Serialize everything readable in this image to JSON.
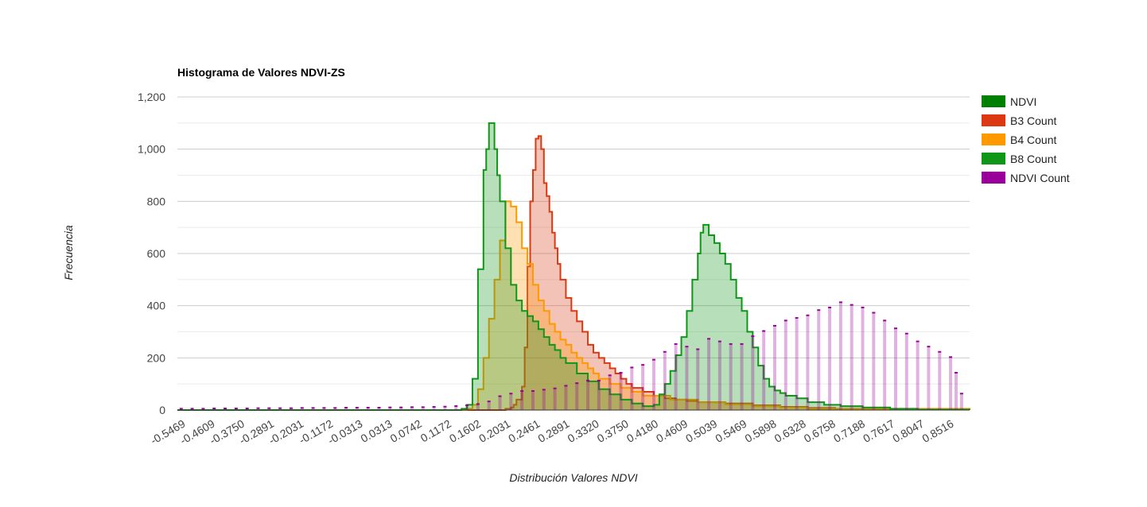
{
  "chart_data": {
    "type": "area",
    "title": "Histograma de Valores NDVI-ZS",
    "xlabel": "Distribución Valores NDVI",
    "ylabel": "Frecuencia",
    "xlim": [
      -0.5469,
      0.8946
    ],
    "ylim": [
      0,
      1200
    ],
    "yticks": [
      0,
      200,
      400,
      600,
      800,
      1000,
      1200
    ],
    "ytick_labels": [
      "0",
      "200",
      "400",
      "600",
      "800",
      "1,000",
      "1,200"
    ],
    "xtick_labels": [
      "-0.5469",
      "-0.4609",
      "-0.3750",
      "-0.2891",
      "-0.2031",
      "-0.1172",
      "-0.0313",
      "0.0313",
      "0.0742",
      "0.1172",
      "0.1602",
      "0.2031",
      "0.2461",
      "0.2891",
      "0.3320",
      "0.3750",
      "0.4180",
      "0.4609",
      "0.5039",
      "0.5469",
      "0.5898",
      "0.6328",
      "0.6758",
      "0.7188",
      "0.7617",
      "0.8047",
      "0.8516"
    ],
    "grid": true,
    "legend_position": "right",
    "series": [
      {
        "name": "NDVI",
        "color": "#008000",
        "style": "legend-only",
        "x": [],
        "values": []
      },
      {
        "name": "B3 Count",
        "color": "#dc3912",
        "style": "stepped-area",
        "x": [
          -0.5469,
          0.04,
          0.05,
          0.06,
          0.065,
          0.07,
          0.08,
          0.085,
          0.09,
          0.095,
          0.1,
          0.105,
          0.11,
          0.115,
          0.12,
          0.125,
          0.13,
          0.135,
          0.14,
          0.145,
          0.15,
          0.16,
          0.17,
          0.18,
          0.19,
          0.2,
          0.21,
          0.22,
          0.23,
          0.24,
          0.25,
          0.26,
          0.27,
          0.28,
          0.3,
          0.32,
          0.34,
          0.36,
          0.38,
          0.4,
          0.45,
          0.5,
          0.55,
          0.6,
          0.65,
          0.7,
          0.8946
        ],
        "values": [
          0,
          0,
          5,
          10,
          20,
          40,
          90,
          240,
          550,
          800,
          920,
          1040,
          1050,
          1000,
          870,
          820,
          760,
          680,
          620,
          560,
          500,
          430,
          380,
          340,
          300,
          250,
          220,
          200,
          180,
          160,
          140,
          120,
          100,
          85,
          70,
          55,
          45,
          40,
          35,
          30,
          25,
          18,
          12,
          8,
          5,
          2,
          0
        ]
      },
      {
        "name": "B4 Count",
        "color": "#ff9900",
        "style": "stepped-area",
        "x": [
          -0.5469,
          -0.03,
          -0.02,
          -0.01,
          0,
          0.01,
          0.02,
          0.03,
          0.04,
          0.05,
          0.06,
          0.07,
          0.08,
          0.09,
          0.1,
          0.11,
          0.12,
          0.13,
          0.14,
          0.15,
          0.16,
          0.17,
          0.18,
          0.19,
          0.2,
          0.21,
          0.22,
          0.24,
          0.26,
          0.28,
          0.3,
          0.35,
          0.4,
          0.45,
          0.5,
          0.55,
          0.6,
          0.8946
        ],
        "values": [
          0,
          0,
          5,
          20,
          80,
          200,
          350,
          500,
          650,
          800,
          780,
          720,
          620,
          560,
          480,
          420,
          380,
          330,
          300,
          270,
          250,
          220,
          200,
          180,
          160,
          140,
          120,
          100,
          85,
          70,
          55,
          40,
          30,
          22,
          15,
          10,
          5,
          0
        ]
      },
      {
        "name": "B8 Count",
        "color": "#109618",
        "style": "stepped-area",
        "x": [
          -0.5469,
          -0.04,
          -0.03,
          -0.02,
          -0.01,
          0,
          0.01,
          0.015,
          0.02,
          0.03,
          0.035,
          0.04,
          0.05,
          0.06,
          0.07,
          0.08,
          0.09,
          0.1,
          0.11,
          0.12,
          0.13,
          0.14,
          0.15,
          0.16,
          0.18,
          0.2,
          0.22,
          0.24,
          0.26,
          0.28,
          0.3,
          0.32,
          0.33,
          0.34,
          0.35,
          0.36,
          0.37,
          0.38,
          0.39,
          0.4,
          0.405,
          0.41,
          0.42,
          0.43,
          0.44,
          0.45,
          0.46,
          0.47,
          0.48,
          0.49,
          0.5,
          0.51,
          0.52,
          0.53,
          0.54,
          0.55,
          0.56,
          0.58,
          0.6,
          0.63,
          0.66,
          0.7,
          0.75,
          0.8,
          0.8946
        ],
        "values": [
          0,
          0,
          5,
          20,
          120,
          540,
          920,
          1000,
          1100,
          1000,
          900,
          800,
          620,
          480,
          420,
          380,
          360,
          340,
          310,
          280,
          250,
          230,
          200,
          180,
          140,
          110,
          80,
          60,
          40,
          25,
          15,
          20,
          60,
          100,
          150,
          210,
          280,
          380,
          500,
          600,
          680,
          710,
          670,
          640,
          600,
          560,
          500,
          430,
          380,
          300,
          240,
          170,
          120,
          90,
          75,
          65,
          55,
          45,
          30,
          20,
          15,
          10,
          5,
          2,
          0
        ]
      },
      {
        "name": "NDVI Count",
        "color": "#990099",
        "style": "bars",
        "x": [
          -0.54,
          -0.52,
          -0.5,
          -0.48,
          -0.46,
          -0.44,
          -0.42,
          -0.4,
          -0.38,
          -0.36,
          -0.34,
          -0.32,
          -0.3,
          -0.28,
          -0.26,
          -0.24,
          -0.22,
          -0.2,
          -0.18,
          -0.16,
          -0.14,
          -0.12,
          -0.1,
          -0.08,
          -0.06,
          -0.04,
          -0.02,
          0,
          0.02,
          0.04,
          0.06,
          0.08,
          0.1,
          0.12,
          0.14,
          0.16,
          0.18,
          0.2,
          0.22,
          0.24,
          0.26,
          0.28,
          0.3,
          0.32,
          0.34,
          0.36,
          0.38,
          0.4,
          0.42,
          0.44,
          0.46,
          0.48,
          0.5,
          0.52,
          0.54,
          0.56,
          0.58,
          0.6,
          0.62,
          0.64,
          0.66,
          0.68,
          0.7,
          0.72,
          0.74,
          0.76,
          0.78,
          0.8,
          0.82,
          0.84,
          0.86,
          0.87,
          0.88
        ],
        "values": [
          2,
          2,
          2,
          3,
          3,
          3,
          3,
          4,
          4,
          4,
          4,
          5,
          5,
          5,
          5,
          6,
          6,
          6,
          6,
          7,
          7,
          8,
          8,
          9,
          10,
          12,
          15,
          20,
          30,
          50,
          60,
          70,
          70,
          75,
          80,
          90,
          100,
          110,
          110,
          130,
          140,
          160,
          170,
          190,
          220,
          250,
          240,
          230,
          270,
          260,
          250,
          250,
          280,
          300,
          320,
          340,
          350,
          360,
          380,
          390,
          410,
          400,
          390,
          370,
          340,
          310,
          290,
          260,
          240,
          220,
          200,
          140,
          60
        ]
      }
    ]
  }
}
